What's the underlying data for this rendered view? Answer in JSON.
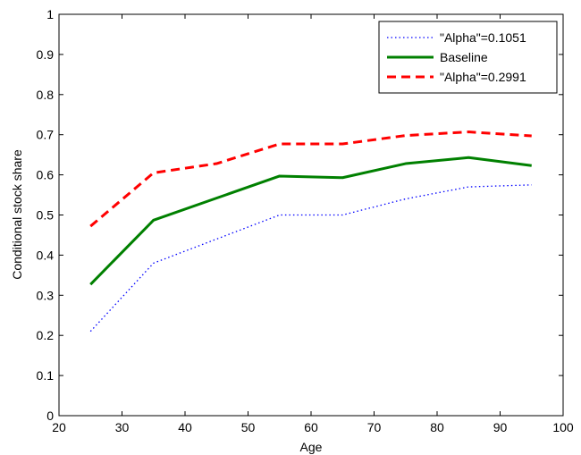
{
  "chart_data": {
    "type": "line",
    "xlabel": "Age",
    "ylabel": "Conditional stock share",
    "xlim": [
      20,
      100
    ],
    "ylim": [
      0,
      1
    ],
    "x_ticks": [
      20,
      30,
      40,
      50,
      60,
      70,
      80,
      90,
      100
    ],
    "y_ticks": [
      0,
      0.1,
      0.2,
      0.3,
      0.4,
      0.5,
      0.6,
      0.7,
      0.8,
      0.9,
      1
    ],
    "y_tick_labels": [
      "0",
      "0.1",
      "0.2",
      "0.3",
      "0.4",
      "0.5",
      "0.6",
      "0.7",
      "0.8",
      "0.9",
      "1"
    ],
    "grid": false,
    "legend_position": "top-right",
    "x": [
      25,
      35,
      45,
      55,
      65,
      75,
      85,
      95
    ],
    "series": [
      {
        "name": "\"Alpha\"=0.1051",
        "color": "#0000ff",
        "style": "dotted",
        "values": [
          0.21,
          0.38,
          0.44,
          0.5,
          0.5,
          0.54,
          0.57,
          0.575
        ]
      },
      {
        "name": "Baseline",
        "color": "#008000",
        "style": "solid",
        "values": [
          0.327,
          0.487,
          0.542,
          0.597,
          0.593,
          0.628,
          0.643,
          0.623
        ]
      },
      {
        "name": "\"Alpha\"=0.2991",
        "color": "#ff0000",
        "style": "dashed",
        "values": [
          0.472,
          0.605,
          0.628,
          0.677,
          0.677,
          0.698,
          0.707,
          0.697
        ]
      }
    ]
  }
}
